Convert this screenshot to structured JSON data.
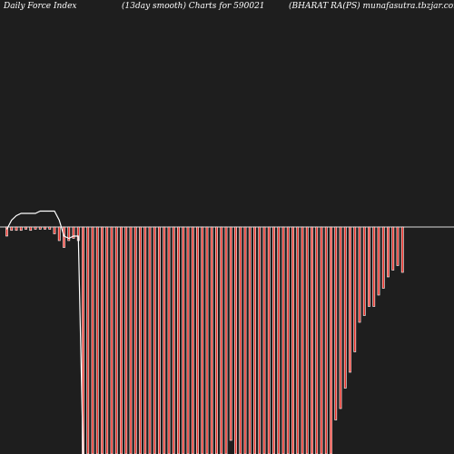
{
  "header": {
    "left": "Daily Force  Index",
    "center": "(13day smooth) Charts for 590021",
    "right": "(BHARAT RA(PS) munafasutra.tbzjar.com"
  },
  "colors": {
    "background": "#1e1e1e",
    "bar": "#e8322a",
    "bar_edge": "#ffffff",
    "zero_line": "#d9d9d9",
    "index_line": "#ffffff",
    "text": "#ffffff"
  },
  "chart_data": {
    "type": "bar",
    "title": "",
    "xlabel": "",
    "ylabel": "",
    "ylim": [
      -100,
      10
    ],
    "grid": false,
    "legend": "none",
    "series": [
      {
        "type": "bar",
        "values": [
          -4,
          -1.5,
          -1.5,
          -1.5,
          -1,
          -1.5,
          -1,
          -1,
          -1,
          -1,
          -3,
          -6,
          -9,
          -6,
          -5,
          -6,
          -100,
          -100,
          -100,
          -100,
          -100,
          -100,
          -100,
          -100,
          -100,
          -100,
          -100,
          -100,
          -100,
          -100,
          -100,
          -100,
          -100,
          -100,
          -100,
          -100,
          -100,
          -100,
          -100,
          -100,
          -100,
          -100,
          -100,
          -100,
          -100,
          -100,
          -100,
          -94,
          -100,
          -100,
          -100,
          -100,
          -100,
          -100,
          -100,
          -100,
          -100,
          -100,
          -100,
          -100,
          -100,
          -100,
          -100,
          -100,
          -100,
          -100,
          -100,
          -100,
          -100,
          -85,
          -80,
          -71,
          -64,
          -55,
          -42,
          -39,
          -35,
          -35,
          -30,
          -27,
          -22,
          -19,
          -17,
          -20
        ]
      },
      {
        "type": "line",
        "values": [
          -1,
          3,
          5,
          6,
          6,
          6,
          6,
          7,
          7,
          7,
          7,
          3,
          -4,
          -5,
          -4,
          -4,
          -100
        ]
      }
    ]
  }
}
